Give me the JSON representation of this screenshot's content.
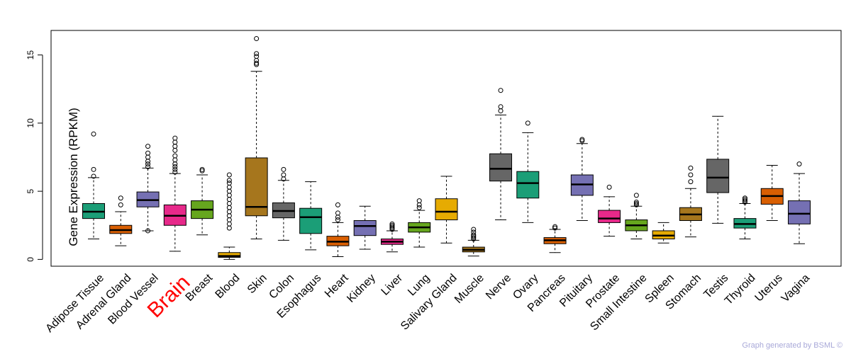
{
  "chart_data": {
    "type": "box",
    "ylabel": "Gene Expression (RPKM)",
    "ylim": [
      -0.5,
      16.8
    ],
    "yticks": [
      0,
      5,
      10,
      15
    ],
    "highlight": "Brain",
    "highlight_color": "#ff0000",
    "credit": "Graph generated by BSML ©",
    "boxes": [
      {
        "name": "Adipose Tissue",
        "color": "#1b9e77",
        "q1": 3.0,
        "median": 3.5,
        "q3": 4.1,
        "whisker_low": 1.5,
        "whisker_high": 6.0,
        "outliers": [
          6.1,
          6.6,
          9.2
        ]
      },
      {
        "name": "Adrenal Gland",
        "color": "#d95f02",
        "q1": 1.9,
        "median": 2.15,
        "q3": 2.5,
        "whisker_low": 1.0,
        "whisker_high": 3.5,
        "outliers": [
          4.0,
          4.5
        ]
      },
      {
        "name": "Blood Vessel",
        "color": "#7570b3",
        "q1": 3.85,
        "median": 4.35,
        "q3": 4.95,
        "whisker_low": 2.1,
        "whisker_high": 6.7,
        "outliers": [
          2.1,
          6.8,
          7.0,
          7.2,
          7.5,
          7.8,
          8.3
        ]
      },
      {
        "name": "Brain",
        "color": "#e7298a",
        "q1": 2.5,
        "median": 3.2,
        "q3": 4.0,
        "whisker_low": 0.6,
        "whisker_high": 6.3,
        "outliers": [
          6.4,
          6.6,
          6.8,
          7.0,
          7.3,
          7.6,
          8.0,
          8.3,
          8.6,
          8.9
        ]
      },
      {
        "name": "Breast",
        "color": "#66a61e",
        "q1": 3.0,
        "median": 3.65,
        "q3": 4.3,
        "whisker_low": 1.8,
        "whisker_high": 6.2,
        "outliers": [
          6.5,
          6.6
        ]
      },
      {
        "name": "Blood",
        "color": "#e6ab02",
        "q1": 0.15,
        "median": 0.25,
        "q3": 0.5,
        "whisker_low": 0.0,
        "whisker_high": 0.9,
        "outliers": [
          2.3,
          2.6,
          2.9,
          3.2,
          3.5,
          3.8,
          4.1,
          4.4,
          4.7,
          5.0,
          5.3,
          5.6,
          5.8,
          6.2
        ]
      },
      {
        "name": "Skin",
        "color": "#a6761d",
        "q1": 3.2,
        "median": 3.85,
        "q3": 7.45,
        "whisker_low": 1.5,
        "whisker_high": 13.8,
        "outliers": [
          14.3,
          14.4,
          14.6,
          14.9,
          15.1,
          16.2
        ]
      },
      {
        "name": "Colon",
        "color": "#666666",
        "q1": 3.05,
        "median": 3.55,
        "q3": 4.15,
        "whisker_low": 1.4,
        "whisker_high": 5.8,
        "outliers": [
          5.9,
          6.2,
          6.6
        ]
      },
      {
        "name": "Esophagus",
        "color": "#1b9e77",
        "q1": 1.9,
        "median": 3.1,
        "q3": 3.75,
        "whisker_low": 0.7,
        "whisker_high": 5.7,
        "outliers": []
      },
      {
        "name": "Heart",
        "color": "#d95f02",
        "q1": 1.0,
        "median": 1.3,
        "q3": 1.7,
        "whisker_low": 0.2,
        "whisker_high": 2.7,
        "outliers": [
          2.9,
          3.1,
          3.4,
          4.0
        ]
      },
      {
        "name": "Kidney",
        "color": "#7570b3",
        "q1": 1.75,
        "median": 2.45,
        "q3": 2.85,
        "whisker_low": 0.75,
        "whisker_high": 3.9,
        "outliers": []
      },
      {
        "name": "Liver",
        "color": "#e7298a",
        "q1": 1.1,
        "median": 1.3,
        "q3": 1.5,
        "whisker_low": 0.55,
        "whisker_high": 2.1,
        "outliers": [
          2.2,
          2.3,
          2.4,
          2.5,
          2.6
        ]
      },
      {
        "name": "Lung",
        "color": "#66a61e",
        "q1": 2.0,
        "median": 2.35,
        "q3": 2.7,
        "whisker_low": 0.9,
        "whisker_high": 3.6,
        "outliers": [
          3.8,
          4.0,
          4.3
        ]
      },
      {
        "name": "Salivary Gland",
        "color": "#e6ab02",
        "q1": 2.9,
        "median": 3.5,
        "q3": 4.45,
        "whisker_low": 1.2,
        "whisker_high": 6.1,
        "outliers": []
      },
      {
        "name": "Muscle",
        "color": "#a6761d",
        "q1": 0.55,
        "median": 0.7,
        "q3": 0.9,
        "whisker_low": 0.25,
        "whisker_high": 1.4,
        "outliers": [
          1.5,
          1.6,
          1.7,
          1.8,
          2.0,
          2.2
        ]
      },
      {
        "name": "Nerve",
        "color": "#666666",
        "q1": 5.75,
        "median": 6.65,
        "q3": 7.75,
        "whisker_low": 2.9,
        "whisker_high": 10.6,
        "outliers": [
          10.9,
          11.2,
          12.4
        ]
      },
      {
        "name": "Ovary",
        "color": "#1b9e77",
        "q1": 4.5,
        "median": 5.6,
        "q3": 6.45,
        "whisker_low": 2.7,
        "whisker_high": 9.3,
        "outliers": [
          10.0
        ]
      },
      {
        "name": "Pancreas",
        "color": "#d95f02",
        "q1": 1.15,
        "median": 1.4,
        "q3": 1.6,
        "whisker_low": 0.5,
        "whisker_high": 2.2,
        "outliers": [
          2.3,
          2.4
        ]
      },
      {
        "name": "Pituitary",
        "color": "#7570b3",
        "q1": 4.7,
        "median": 5.5,
        "q3": 6.2,
        "whisker_low": 2.85,
        "whisker_high": 8.5,
        "outliers": [
          8.7,
          8.8
        ]
      },
      {
        "name": "Prostate",
        "color": "#e7298a",
        "q1": 2.7,
        "median": 3.0,
        "q3": 3.6,
        "whisker_low": 1.7,
        "whisker_high": 4.6,
        "outliers": [
          5.3
        ]
      },
      {
        "name": "Small Intestine",
        "color": "#66a61e",
        "q1": 2.1,
        "median": 2.5,
        "q3": 2.9,
        "whisker_low": 1.5,
        "whisker_high": 3.9,
        "outliers": [
          4.0,
          4.1,
          4.2,
          4.7
        ]
      },
      {
        "name": "Spleen",
        "color": "#e6ab02",
        "q1": 1.5,
        "median": 1.75,
        "q3": 2.1,
        "whisker_low": 1.2,
        "whisker_high": 2.7,
        "outliers": []
      },
      {
        "name": "Stomach",
        "color": "#a6761d",
        "q1": 2.85,
        "median": 3.3,
        "q3": 3.8,
        "whisker_low": 1.65,
        "whisker_high": 5.2,
        "outliers": [
          5.7,
          6.2,
          6.7
        ]
      },
      {
        "name": "Testis",
        "color": "#666666",
        "q1": 4.9,
        "median": 6.0,
        "q3": 7.35,
        "whisker_low": 2.65,
        "whisker_high": 10.5,
        "outliers": []
      },
      {
        "name": "Thyroid",
        "color": "#1b9e77",
        "q1": 2.3,
        "median": 2.6,
        "q3": 3.0,
        "whisker_low": 1.5,
        "whisker_high": 4.1,
        "outliers": [
          4.2,
          4.3,
          4.4,
          4.5
        ]
      },
      {
        "name": "Uterus",
        "color": "#d95f02",
        "q1": 4.05,
        "median": 4.65,
        "q3": 5.2,
        "whisker_low": 2.85,
        "whisker_high": 6.9,
        "outliers": []
      },
      {
        "name": "Vagina",
        "color": "#7570b3",
        "q1": 2.6,
        "median": 3.35,
        "q3": 4.3,
        "whisker_low": 1.15,
        "whisker_high": 6.3,
        "outliers": [
          7.0
        ]
      }
    ]
  }
}
